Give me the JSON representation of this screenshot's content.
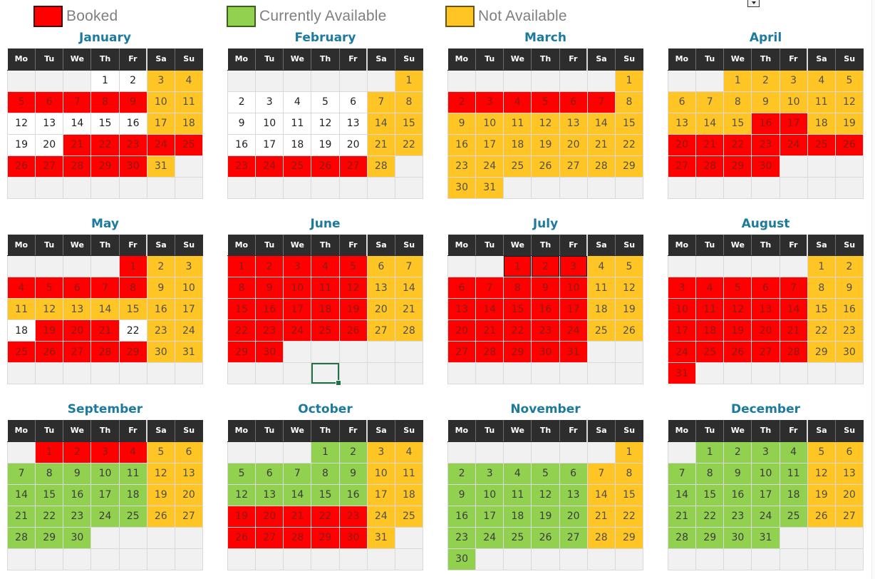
{
  "legend": {
    "items": [
      {
        "label": "Booked",
        "color": "#ff0000",
        "border_color": "#450707"
      },
      {
        "label": "Currently Available",
        "color": "#92d050",
        "border_color": "#3f5e1c"
      },
      {
        "label": "Not Available",
        "color": "#fec524",
        "border_color": "#6e5410"
      }
    ]
  },
  "calendar": {
    "day_headers": [
      "Mo",
      "Tu",
      "We",
      "Th",
      "Fr",
      "Sa",
      "Su"
    ],
    "status_names": {
      "b": "booked",
      "a": "currently-available",
      "n": "not-available",
      "w": "unmarked",
      "e": "blank"
    },
    "status_colors": {
      "b": "#ff0000",
      "a": "#92d050",
      "n": "#fec524",
      "w": "#ffffff",
      "e": "#f1f1f1"
    },
    "selection_color": "#217346",
    "months": [
      {
        "name": "January",
        "weeks": [
          [
            "|e",
            "|e",
            "|e",
            "1|w",
            "2|w",
            "3|n",
            "4|n"
          ],
          [
            "5|b",
            "6|b",
            "7|b",
            "8|b",
            "9|b",
            "10|n",
            "11|n"
          ],
          [
            "12|w",
            "13|w",
            "14|w",
            "15|w",
            "16|w",
            "17|n",
            "18|n"
          ],
          [
            "19|w",
            "20|w",
            "21|b",
            "22|b",
            "23|b",
            "24|b",
            "25|b"
          ],
          [
            "26|b",
            "27|b",
            "28|b",
            "29|b",
            "30|b",
            "31|n",
            "|e"
          ],
          [
            "|e",
            "|e",
            "|e",
            "|e",
            "|e",
            "|e",
            "|e"
          ]
        ]
      },
      {
        "name": "February",
        "weeks": [
          [
            "|e",
            "|e",
            "|e",
            "|e",
            "|e",
            "|e",
            "1|n"
          ],
          [
            "2|w",
            "3|w",
            "4|w",
            "5|w",
            "6|w",
            "7|n",
            "8|n"
          ],
          [
            "9|w",
            "10|w",
            "11|w",
            "12|w",
            "13|w",
            "14|n",
            "15|n"
          ],
          [
            "16|w",
            "17|w",
            "18|w",
            "19|w",
            "20|w",
            "21|n",
            "22|n"
          ],
          [
            "23|b",
            "24|b",
            "25|b",
            "26|b",
            "27|b",
            "28|n",
            "|e"
          ],
          [
            "|e",
            "|e",
            "|e",
            "|e",
            "|e",
            "|e",
            "|e"
          ]
        ]
      },
      {
        "name": "March",
        "weeks": [
          [
            "|e",
            "|e",
            "|e",
            "|e",
            "|e",
            "|e",
            "1|n"
          ],
          [
            "2|b",
            "3|b",
            "4|b",
            "5|b",
            "6|b",
            "7|b",
            "8|n"
          ],
          [
            "9|n",
            "10|n",
            "11|n",
            "12|n",
            "13|n",
            "14|n",
            "15|n"
          ],
          [
            "16|n",
            "17|n",
            "18|n",
            "19|n",
            "20|n",
            "21|n",
            "22|n"
          ],
          [
            "23|n",
            "24|n",
            "25|n",
            "26|n",
            "27|n",
            "28|n",
            "29|n"
          ],
          [
            "30|n",
            "31|n",
            "|e",
            "|e",
            "|e",
            "|e",
            "|e"
          ]
        ]
      },
      {
        "name": "April",
        "weeks": [
          [
            "|e",
            "|e",
            "1|n",
            "2|n",
            "3|n",
            "4|n",
            "5|n"
          ],
          [
            "6|n",
            "7|n",
            "8|n",
            "9|n",
            "10|n",
            "11|n",
            "12|n"
          ],
          [
            "13|n",
            "14|n",
            "15|n",
            "16|b",
            "17|b",
            "18|n",
            "19|n"
          ],
          [
            "20|b",
            "21|b",
            "22|b",
            "23|b",
            "24|b",
            "25|b",
            "26|b"
          ],
          [
            "27|b",
            "28|b",
            "29|b",
            "30|b",
            "|e",
            "|e",
            "|e"
          ],
          [
            "|e",
            "|e",
            "|e",
            "|e",
            "|e",
            "|e",
            "|e"
          ]
        ]
      },
      {
        "name": "May",
        "weeks": [
          [
            "|e",
            "|e",
            "|e",
            "|e",
            "1|b",
            "2|n",
            "3|n"
          ],
          [
            "4|b",
            "5|b",
            "6|b",
            "7|b",
            "8|b",
            "9|n",
            "10|n"
          ],
          [
            "11|n",
            "12|n",
            "13|n",
            "14|n",
            "15|n",
            "16|n",
            "17|n"
          ],
          [
            "18|w",
            "19|b",
            "20|b",
            "21|b",
            "22|w",
            "23|n",
            "24|n"
          ],
          [
            "25|b",
            "26|b",
            "27|b",
            "28|b",
            "29|b",
            "30|n",
            "31|n"
          ],
          [
            "|e",
            "|e",
            "|e",
            "|e",
            "|e",
            "|e",
            "|e"
          ]
        ]
      },
      {
        "name": "June",
        "weeks": [
          [
            "1|b",
            "2|b",
            "3|b",
            "4|b",
            "5|b",
            "6|n",
            "7|n"
          ],
          [
            "8|b",
            "9|b",
            "10|b",
            "11|b",
            "12|b",
            "13|n",
            "14|n"
          ],
          [
            "15|b",
            "16|b",
            "17|b",
            "18|b",
            "19|b",
            "20|n",
            "21|n"
          ],
          [
            "22|b",
            "23|b",
            "24|b",
            "25|b",
            "26|b",
            "27|n",
            "28|n"
          ],
          [
            "29|b",
            "30|b",
            "|e",
            "|e",
            "|e",
            "|e",
            "|e"
          ],
          [
            "|e",
            "|e",
            "|e",
            "|es",
            "|e",
            "|e",
            "|e"
          ]
        ]
      },
      {
        "name": "July",
        "weeks": [
          [
            "|e",
            "|e",
            "1|bf",
            "2|bf",
            "3|bf",
            "4|n",
            "5|n"
          ],
          [
            "6|b",
            "7|b",
            "8|b",
            "9|b",
            "10|b",
            "11|n",
            "12|n"
          ],
          [
            "13|b",
            "14|b",
            "15|b",
            "16|b",
            "17|b",
            "18|n",
            "19|n"
          ],
          [
            "20|b",
            "21|b",
            "22|b",
            "23|b",
            "24|b",
            "25|n",
            "26|n"
          ],
          [
            "27|b",
            "28|b",
            "29|b",
            "30|b",
            "31|b",
            "|e",
            "|e"
          ],
          [
            "|e",
            "|e",
            "|e",
            "|e",
            "|e",
            "|e",
            "|e"
          ]
        ]
      },
      {
        "name": "August",
        "weeks": [
          [
            "|e",
            "|e",
            "|e",
            "|e",
            "|e",
            "1|n",
            "2|n"
          ],
          [
            "3|b",
            "4|b",
            "5|b",
            "6|b",
            "7|b",
            "8|n",
            "9|n"
          ],
          [
            "10|b",
            "11|b",
            "12|b",
            "13|b",
            "14|b",
            "15|n",
            "16|n"
          ],
          [
            "17|b",
            "18|b",
            "19|b",
            "20|b",
            "21|b",
            "22|n",
            "23|n"
          ],
          [
            "24|b",
            "25|b",
            "26|b",
            "27|b",
            "28|b",
            "29|n",
            "30|n"
          ],
          [
            "31|b",
            "|e",
            "|e",
            "|e",
            "|e",
            "|e",
            "|e"
          ]
        ]
      },
      {
        "name": "September",
        "weeks": [
          [
            "|e",
            "1|b",
            "2|b",
            "3|b",
            "4|b",
            "5|n",
            "6|n"
          ],
          [
            "7|a",
            "8|a",
            "9|a",
            "10|a",
            "11|a",
            "12|n",
            "13|n"
          ],
          [
            "14|a",
            "15|a",
            "16|a",
            "17|a",
            "18|a",
            "19|n",
            "20|n"
          ],
          [
            "21|a",
            "22|a",
            "23|a",
            "24|a",
            "25|a",
            "26|n",
            "27|n"
          ],
          [
            "28|a",
            "29|a",
            "30|a",
            "|e",
            "|e",
            "|e",
            "|e"
          ],
          [
            "|e",
            "|e",
            "|e",
            "|e",
            "|e",
            "|e",
            "|e"
          ]
        ]
      },
      {
        "name": "October",
        "weeks": [
          [
            "|e",
            "|e",
            "|e",
            "1|a",
            "2|a",
            "3|n",
            "4|n"
          ],
          [
            "5|a",
            "6|a",
            "7|a",
            "8|a",
            "9|a",
            "10|n",
            "11|n"
          ],
          [
            "12|a",
            "13|a",
            "14|a",
            "15|a",
            "16|a",
            "17|n",
            "18|n"
          ],
          [
            "19|b",
            "20|b",
            "21|b",
            "22|b",
            "23|b",
            "24|n",
            "25|n"
          ],
          [
            "26|b",
            "27|b",
            "28|b",
            "29|b",
            "30|b",
            "31|n",
            "|e"
          ],
          [
            "|e",
            "|e",
            "|e",
            "|e",
            "|e",
            "|e",
            "|e"
          ]
        ]
      },
      {
        "name": "November",
        "weeks": [
          [
            "|e",
            "|e",
            "|e",
            "|e",
            "|e",
            "|e",
            "1|n"
          ],
          [
            "2|a",
            "3|a",
            "4|a",
            "5|a",
            "6|a",
            "7|n",
            "8|n"
          ],
          [
            "9|a",
            "10|a",
            "11|a",
            "12|a",
            "13|a",
            "14|n",
            "15|n"
          ],
          [
            "16|a",
            "17|a",
            "18|a",
            "19|a",
            "20|a",
            "21|n",
            "22|n"
          ],
          [
            "23|a",
            "24|a",
            "25|a",
            "26|a",
            "27|a",
            "28|n",
            "29|n"
          ],
          [
            "30|a",
            "|e",
            "|e",
            "|e",
            "|e",
            "|e",
            "|e"
          ]
        ]
      },
      {
        "name": "December",
        "weeks": [
          [
            "|e",
            "1|a",
            "2|a",
            "3|a",
            "4|a",
            "5|n",
            "6|n"
          ],
          [
            "7|a",
            "8|a",
            "9|a",
            "10|a",
            "11|a",
            "12|n",
            "13|n"
          ],
          [
            "14|a",
            "15|a",
            "16|a",
            "17|a",
            "18|a",
            "19|n",
            "20|n"
          ],
          [
            "21|a",
            "22|a",
            "23|a",
            "24|a",
            "25|a",
            "26|n",
            "27|n"
          ],
          [
            "28|a",
            "29|a",
            "30|a",
            "31|a",
            "|e",
            "|e",
            "|e"
          ],
          [
            "|e",
            "|e",
            "|e",
            "|e",
            "|e",
            "|e",
            "|e"
          ]
        ]
      }
    ]
  }
}
